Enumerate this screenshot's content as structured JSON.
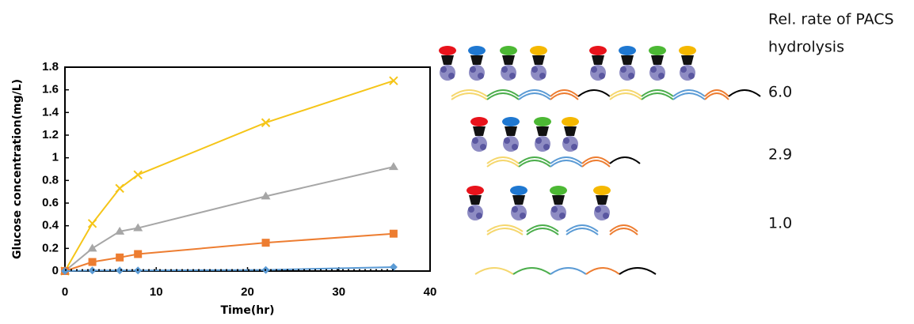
{
  "chart_data": {
    "type": "line",
    "x_label": "Time(hr)",
    "y_label": "Glucose concentration(mg/L)",
    "xlim": [
      0,
      40
    ],
    "xticks": [
      0,
      10,
      20,
      30,
      40
    ],
    "ylim": [
      0,
      1.8
    ],
    "yticks": [
      0,
      0.2,
      0.4,
      0.6,
      0.8,
      1,
      1.2,
      1.4,
      1.6,
      1.8
    ],
    "x": [
      0,
      3,
      6,
      8,
      22,
      36
    ],
    "series": [
      {
        "color": "#f5c518",
        "marker": "x",
        "values": [
          0,
          0.42,
          0.73,
          0.85,
          1.31,
          1.68
        ]
      },
      {
        "color": "#a6a6a6",
        "marker": "triangle",
        "values": [
          0,
          0.2,
          0.35,
          0.38,
          0.66,
          0.92
        ]
      },
      {
        "color": "#ed7d31",
        "marker": "square",
        "values": [
          0,
          0.08,
          0.12,
          0.15,
          0.25,
          0.33
        ]
      },
      {
        "color": "#5b9bd5",
        "marker": "diamond",
        "values": [
          0,
          0.005,
          0.005,
          0.005,
          0.01,
          0.035
        ]
      },
      {
        "color": "#000000",
        "marker": "none",
        "dashed": true,
        "values": [
          0.01,
          0.01,
          0.01,
          0.01,
          0.01,
          0.01
        ]
      }
    ]
  },
  "diagram": {
    "header": [
      "Rel. rate of PACS",
      "hydrolysis"
    ],
    "rates": [
      "6.0",
      "2.9",
      "1.0"
    ]
  }
}
